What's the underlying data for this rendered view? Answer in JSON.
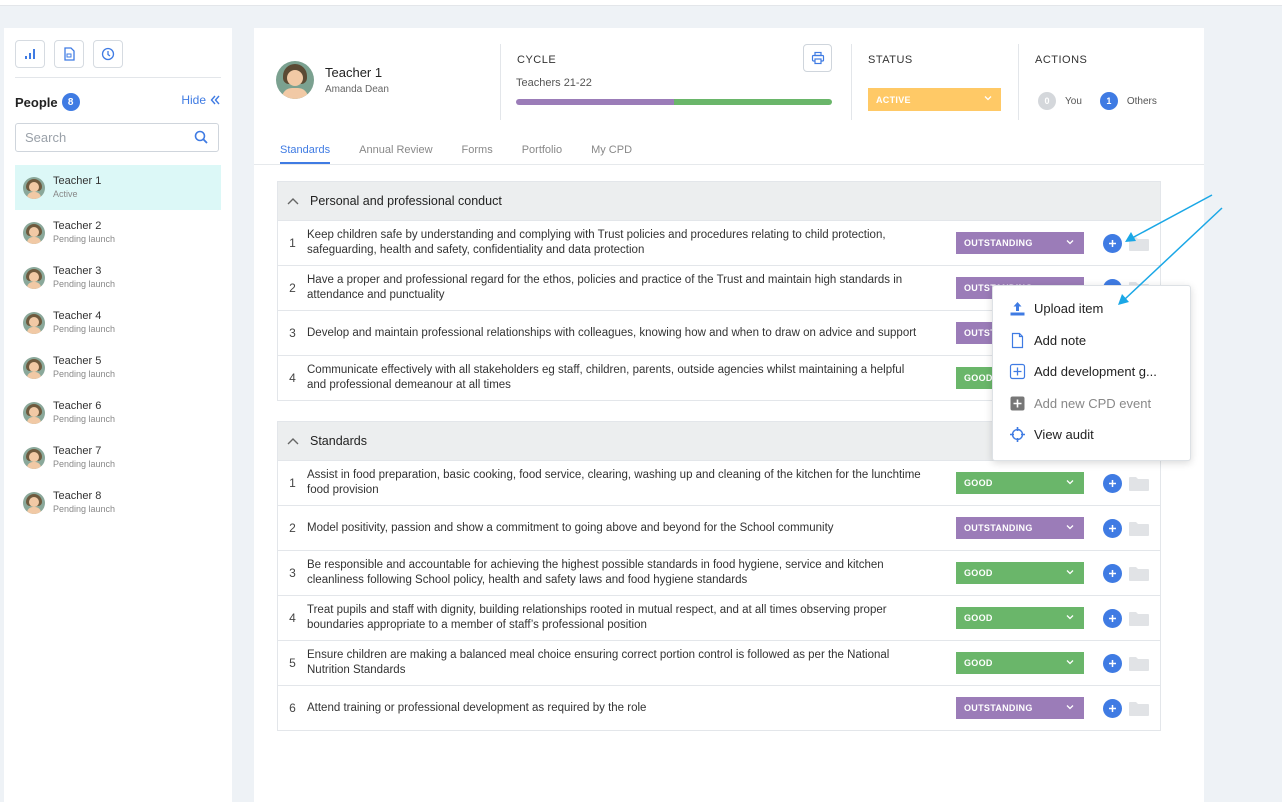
{
  "sidebar": {
    "people_label": "People",
    "people_count": "8",
    "hide_label": "Hide",
    "search_placeholder": "Search",
    "people": [
      {
        "name": "Teacher 1",
        "status": "Active"
      },
      {
        "name": "Teacher 2",
        "status": "Pending launch"
      },
      {
        "name": "Teacher 3",
        "status": "Pending launch"
      },
      {
        "name": "Teacher 4",
        "status": "Pending launch"
      },
      {
        "name": "Teacher 5",
        "status": "Pending launch"
      },
      {
        "name": "Teacher 6",
        "status": "Pending launch"
      },
      {
        "name": "Teacher 7",
        "status": "Pending launch"
      },
      {
        "name": "Teacher 8",
        "status": "Pending launch"
      }
    ]
  },
  "header": {
    "name": "Teacher 1",
    "subtitle": "Amanda Dean",
    "cycle_label": "CYCLE",
    "cycle_value": "Teachers 21-22",
    "status_label": "STATUS",
    "status_value": "ACTIVE",
    "actions_label": "ACTIONS",
    "you_count": "0",
    "you_label": "You",
    "others_count": "1",
    "others_label": "Others"
  },
  "tabs": [
    "Standards",
    "Annual Review",
    "Forms",
    "Portfolio",
    "My CPD"
  ],
  "sections": [
    {
      "title": "Personal and professional conduct",
      "rows": [
        {
          "num": "1",
          "text": "Keep children safe by understanding and complying with Trust policies and procedures relating to child protection, safeguarding, health and safety, confidentiality and data protection",
          "grade": "OUTSTANDING"
        },
        {
          "num": "2",
          "text": "Have a proper and professional regard for the ethos, policies and practice of the Trust and maintain high standards in attendance and punctuality",
          "grade": "OUTSTANDING"
        },
        {
          "num": "3",
          "text": "Develop and maintain professional relationships with colleagues, knowing how and when to draw on advice and support",
          "grade": "OUTSTANDING"
        },
        {
          "num": "4",
          "text": "Communicate effectively with all stakeholders eg staff, children, parents, outside agencies whilst maintaining a helpful and professional demeanour at all times",
          "grade": "GOOD"
        }
      ]
    },
    {
      "title": "Standards",
      "rows": [
        {
          "num": "1",
          "text": "Assist in food preparation, basic cooking, food service, clearing, washing up and cleaning of the kitchen for the lunchtime food provision",
          "grade": "GOOD"
        },
        {
          "num": "2",
          "text": "Model positivity, passion and show a commitment to going above and beyond for the School community",
          "grade": "OUTSTANDING"
        },
        {
          "num": "3",
          "text": "Be responsible and accountable for achieving the highest possible standards in food hygiene, service and kitchen cleanliness following School policy, health and safety laws and food hygiene standards",
          "grade": "GOOD"
        },
        {
          "num": "4",
          "text": "Treat pupils and staff with dignity, building relationships rooted in mutual respect, and at all times observing proper boundaries appropriate to a member of staff’s professional position",
          "grade": "GOOD"
        },
        {
          "num": "5",
          "text": "Ensure children are making a balanced meal choice ensuring correct portion control is followed as per the National Nutrition Standards",
          "grade": "GOOD"
        },
        {
          "num": "6",
          "text": "Attend training or professional development as required by the role",
          "grade": "OUTSTANDING"
        }
      ]
    }
  ],
  "menu": {
    "items": [
      {
        "label": "Upload item",
        "icon": "upload-icon"
      },
      {
        "label": "Add note",
        "icon": "note-icon"
      },
      {
        "label": "Add development g...",
        "icon": "add-box-icon"
      },
      {
        "label": "Add new CPD event",
        "icon": "add-filled-box-icon"
      },
      {
        "label": "View audit",
        "icon": "crosshair-icon"
      }
    ]
  },
  "colors": {
    "accent": "#3f7be3",
    "outstanding": "#9b7cb8",
    "good": "#6ab66a",
    "active_status": "#ffc966",
    "selected_row": "#dcf8f7",
    "annotation_arrow": "#1aa7e6"
  }
}
